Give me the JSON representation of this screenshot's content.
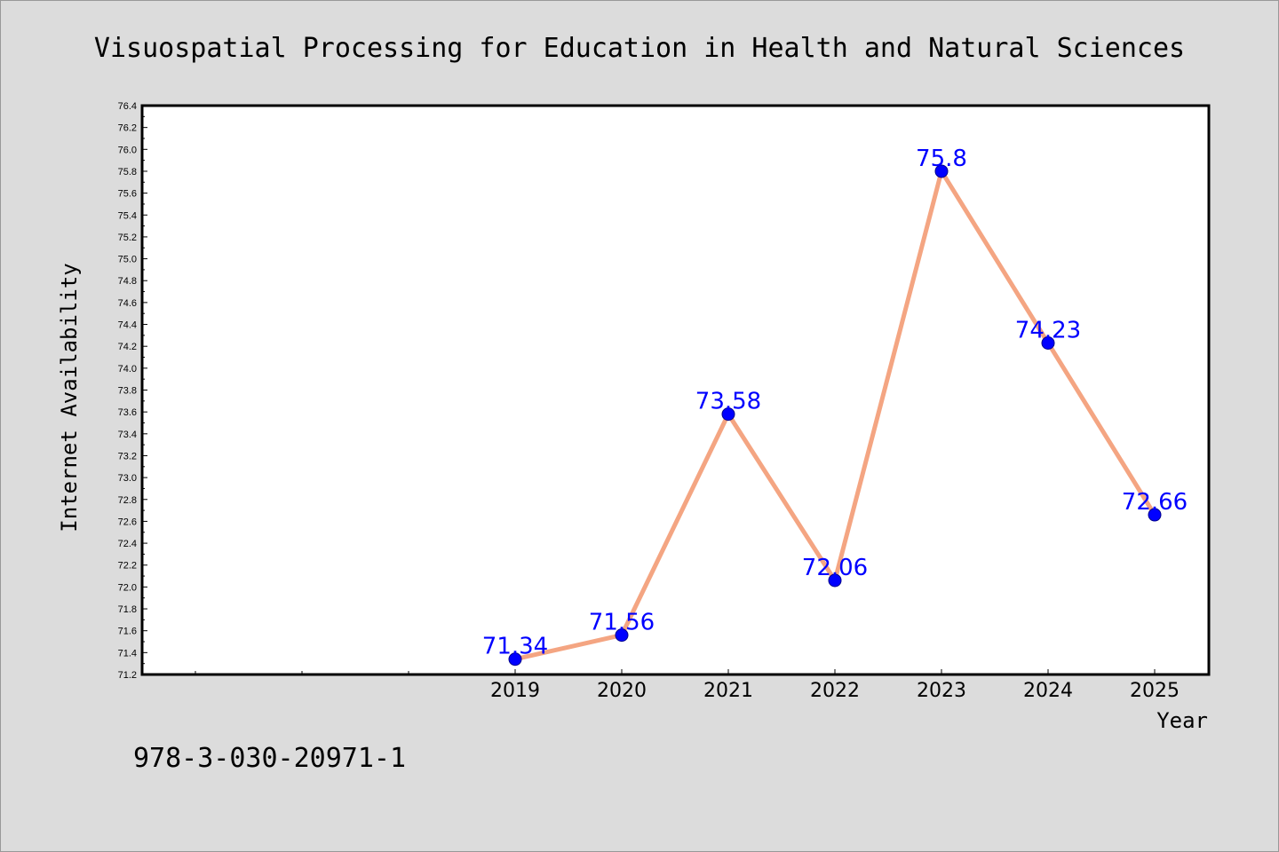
{
  "chart_data": {
    "type": "line",
    "title": "Visuospatial Processing for Education in Health and Natural Sciences",
    "xlabel": "Year",
    "ylabel": "Internet Availability",
    "categories": [
      "2019",
      "2020",
      "2021",
      "2022",
      "2023",
      "2024",
      "2025"
    ],
    "series": [
      {
        "values": [
          71.34,
          71.56,
          73.58,
          72.06,
          75.8,
          74.23,
          72.66
        ],
        "data_labels": [
          "71.34",
          "71.56",
          "73.58",
          "72.06",
          "75.8",
          "74.23",
          "72.66"
        ]
      }
    ],
    "ylim": [
      71.2,
      76.4
    ],
    "yticks": [
      "71.2",
      "71.4",
      "71.6",
      "71.8",
      "72.0",
      "72.2",
      "72.4",
      "72.6",
      "72.8",
      "73.0",
      "73.2",
      "73.4",
      "73.6",
      "73.8",
      "74.0",
      "74.2",
      "74.4",
      "74.6",
      "74.8",
      "75.0",
      "75.2",
      "75.4",
      "75.6",
      "75.8",
      "76.0",
      "76.2",
      "76.4"
    ],
    "grid": false,
    "line_color": "#f4a582",
    "marker_color": "#0000ff",
    "label_color": "#0000ff",
    "background_color": "#dcdcdc",
    "plot_background_color": "#ffffff"
  },
  "footer": {
    "isbn": "978-3-030-20971-1"
  }
}
